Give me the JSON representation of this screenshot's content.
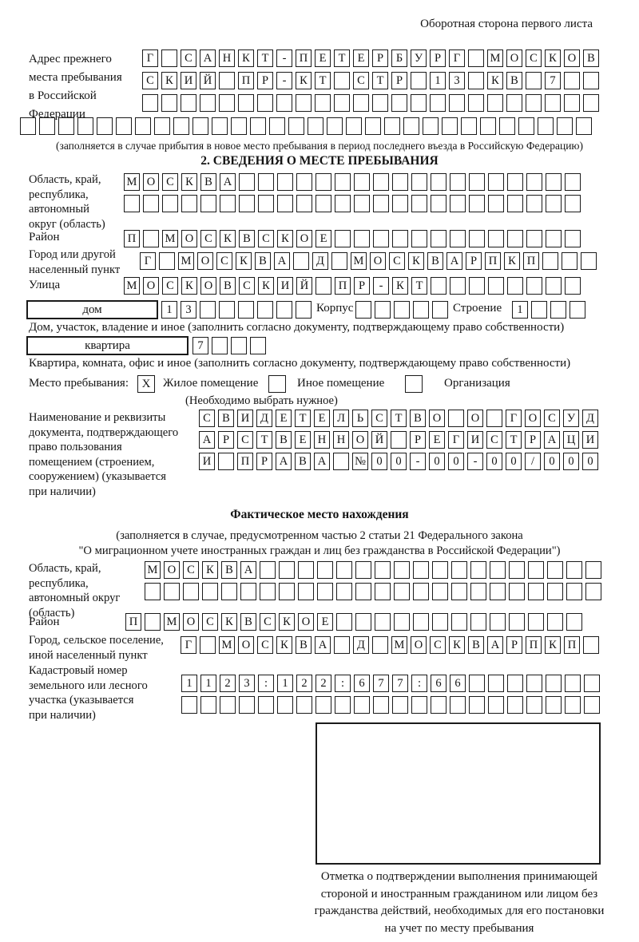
{
  "page": {
    "header_note": "Оборотная сторона первого листа"
  },
  "prev_address": {
    "label_lines": [
      "Адрес прежнего",
      "места пребывания",
      "в Российской",
      "Федерации"
    ],
    "rows": [
      "Г САНКТ-ПЕТЕРБУРГ МОСКОВ",
      "СКИЙ ПР-КТ СТР 13 КВ 7  ",
      "                        "
    ],
    "extra_row": "                              ",
    "note": "(заполняется в случае прибытия в новое место пребывания в период последнего въезда в Российскую Федерацию)"
  },
  "section2": {
    "title": "2. СВЕДЕНИЯ О МЕСТЕ ПРЕБЫВАНИЯ",
    "region": {
      "label_lines": [
        "Область, край,",
        "республика,",
        "автономный",
        "округ (область)"
      ],
      "rows": [
        "МОСКВА                  ",
        "                        "
      ]
    },
    "district": {
      "label": "Район",
      "row": "П МОСКВСКОЕ             "
    },
    "city": {
      "label_lines": [
        "Город или другой",
        "населенный пункт"
      ],
      "row": "Г МОСКВА Д МОСКВАРПКП   "
    },
    "street": {
      "label": "Улица",
      "row": "МОСКОВСКИЙ ПР-КТ        "
    },
    "house": {
      "field_label": "дом",
      "boxes": "13      ",
      "korpus_label": "Корпус",
      "korpus_boxes": "     ",
      "stroenie_label": "Строение",
      "stroenie_boxes": "1   ",
      "note": "Дом, участок, владение и иное (заполнить согласно документу, подтверждающему право собственности)"
    },
    "apartment": {
      "field_label": "квартира",
      "boxes": "7   ",
      "note": "Квартира, комната, офис и иное (заполнить согласно документу, подтверждающему право собственности)"
    },
    "stay_type": {
      "label": "Место пребывания:",
      "options": [
        {
          "mark": "X",
          "label": "Жилое помещение"
        },
        {
          "mark": "",
          "label": "Иное помещение"
        },
        {
          "mark": "",
          "label": "Организация"
        }
      ],
      "note": "(Необходимо выбрать нужное)"
    },
    "document": {
      "label_lines": [
        "Наименование и реквизиты",
        "документа, подтверждающего",
        "право пользования",
        "помещением (строением,",
        "сооружением) (указывается",
        "при наличии)"
      ],
      "rows": [
        "СВИДЕТЕЛЬСТВО О ГОСУД",
        "АРСТВЕННОЙ РЕГИСТРАЦИ",
        "И ПРАВА №00-00-00/000"
      ]
    }
  },
  "actual_location": {
    "title": "Фактическое место нахождения",
    "note_lines": [
      "(заполняется в случае, предусмотренном частью 2 статьи 21 Федерального закона",
      "\"О миграционном учете иностранных граждан и лиц без гражданства в Российской Федерации\")"
    ],
    "region": {
      "label_lines": [
        "Область, край,",
        "республика,",
        "автономный округ",
        "(область)"
      ],
      "rows": [
        "МОСКВА                  ",
        "                        "
      ]
    },
    "district": {
      "label": "Район",
      "row": "П МОСКВСКОЕ             "
    },
    "city": {
      "label_lines": [
        "Город, сельское поселение,",
        "иной населенный пункт"
      ],
      "row": "Г МОСКВА Д МОСКВАРПКП "
    },
    "cadastral": {
      "label_lines": [
        "Кадастровый номер",
        "земельного или лесного",
        "участка (указывается",
        "при наличии)"
      ],
      "rows": [
        "1123:122:677:66       ",
        "                      "
      ]
    }
  },
  "confirmation": {
    "caption_lines": [
      "Отметка о подтверждении выполнения принимающей",
      "стороной и иностранным гражданином или лицом без",
      "гражданства действий, необходимых для его постановки",
      "на учет по месту пребывания"
    ]
  }
}
